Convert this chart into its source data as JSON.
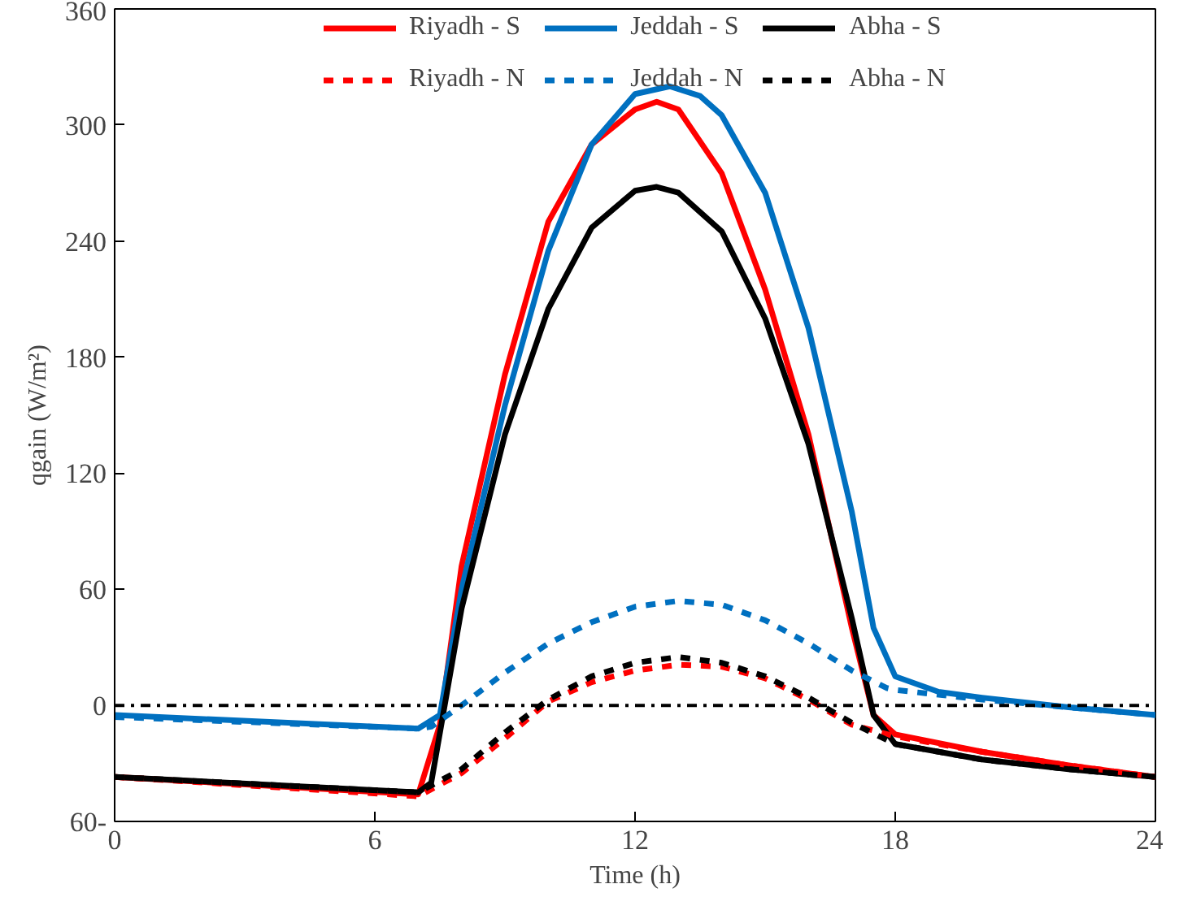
{
  "chart_data": {
    "type": "line",
    "xlabel": "Time (h)",
    "ylabel": "qgain (W/m²)",
    "xlim": [
      0,
      24
    ],
    "xticks": [
      0,
      6,
      12,
      18,
      24
    ],
    "ylim": [
      -60,
      360
    ],
    "yticks": [
      {
        "value": -60,
        "label": "60-"
      },
      0,
      60,
      120,
      180,
      240,
      300,
      360
    ],
    "grid": false,
    "legend": "top",
    "marker": "none",
    "series": [
      {
        "name": "Riyadh - S",
        "color": "#ff0000",
        "line_style": "solid",
        "x": [
          0,
          7,
          7.5,
          8,
          9,
          10,
          11,
          12,
          12.5,
          13,
          14,
          15,
          16,
          17,
          17.5,
          18,
          20,
          22,
          24
        ],
        "values": [
          -37,
          -46,
          -10,
          72,
          171,
          250,
          290,
          308,
          312,
          308,
          275,
          215,
          140,
          40,
          -5,
          -15,
          -24,
          -31,
          -37
        ]
      },
      {
        "name": "Jeddah - S",
        "color": "#0070c0",
        "line_style": "solid",
        "x": [
          0,
          7,
          7.5,
          8,
          9,
          10,
          11,
          12,
          12.8,
          13.5,
          14,
          15,
          16,
          17,
          17.5,
          18,
          19,
          20,
          22,
          24
        ],
        "values": [
          -5,
          -12,
          -5,
          60,
          155,
          235,
          290,
          316,
          320,
          315,
          305,
          265,
          195,
          100,
          40,
          15,
          7,
          4,
          -1,
          -5
        ]
      },
      {
        "name": "Abha - S",
        "color": "#000000",
        "line_style": "solid",
        "x": [
          0,
          7,
          7.3,
          8,
          9,
          10,
          11,
          12,
          12.5,
          13,
          14,
          15,
          16,
          17,
          17.5,
          18,
          20,
          22,
          24
        ],
        "values": [
          -37,
          -45,
          -40,
          50,
          140,
          205,
          247,
          266,
          268,
          265,
          245,
          200,
          135,
          45,
          -5,
          -20,
          -28,
          -33,
          -37
        ]
      },
      {
        "name": "Riyadh - N",
        "color": "#ff0000",
        "line_style": "dashed",
        "x": [
          0,
          7,
          8,
          9,
          10,
          11,
          12,
          13,
          14,
          15,
          16,
          17,
          18,
          20,
          22,
          24
        ],
        "values": [
          -37,
          -47,
          -35,
          -17,
          2,
          12,
          18,
          21,
          20,
          14,
          3,
          -10,
          -16,
          -24,
          -31,
          -37
        ]
      },
      {
        "name": "Jeddah - N",
        "color": "#0070c0",
        "line_style": "dashed",
        "x": [
          0,
          7,
          7.3,
          8,
          9,
          10,
          11,
          12,
          13,
          14,
          15,
          16,
          17,
          17.8,
          18,
          20,
          22,
          24
        ],
        "values": [
          -6,
          -12,
          -11,
          0,
          17,
          32,
          43,
          51,
          54,
          52,
          44,
          32,
          18,
          9,
          8,
          3,
          -1,
          -5
        ]
      },
      {
        "name": "Abha - N",
        "color": "#000000",
        "line_style": "dashed",
        "x": [
          0,
          7,
          8,
          9,
          10,
          11,
          12,
          13,
          14,
          15,
          16,
          17,
          18,
          20,
          22,
          24
        ],
        "values": [
          -37,
          -45,
          -33,
          -14,
          3,
          15,
          22,
          25,
          22,
          15,
          4,
          -9,
          -20,
          -28,
          -33,
          -37
        ]
      }
    ],
    "ref_lines": [
      {
        "axis": "y",
        "value": 0,
        "color": "#000000",
        "line_style": "dashdot"
      }
    ]
  }
}
